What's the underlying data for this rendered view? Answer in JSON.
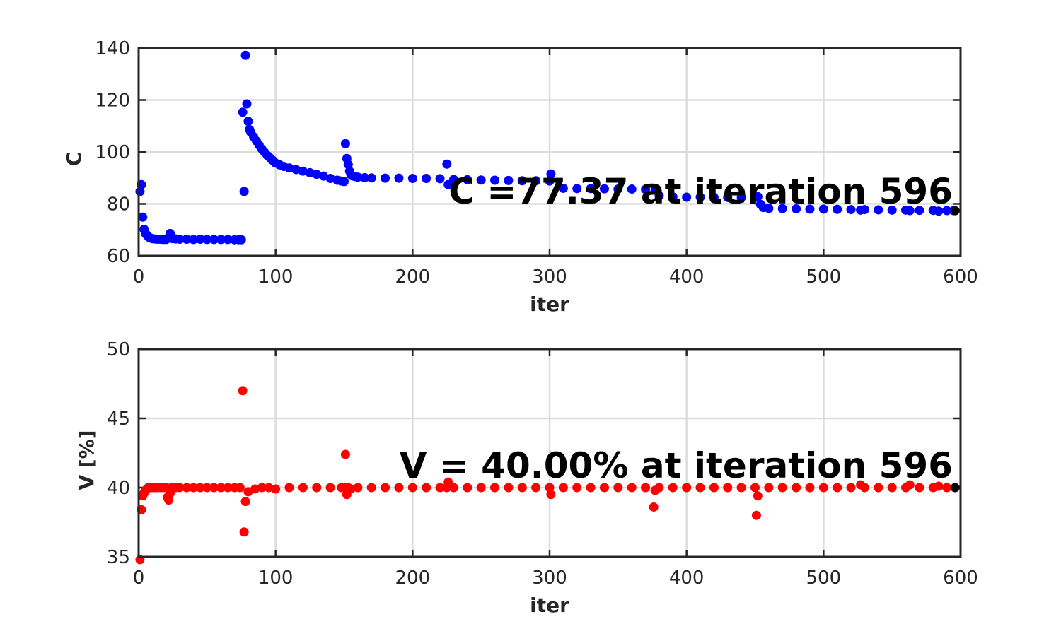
{
  "chart_data": [
    {
      "type": "scatter",
      "xlabel": "iter",
      "ylabel": "C",
      "xlim": [
        0,
        600
      ],
      "ylim": [
        60,
        140
      ],
      "xticks": [
        0,
        100,
        200,
        300,
        400,
        500,
        600
      ],
      "yticks": [
        60,
        80,
        100,
        120,
        140
      ],
      "grid": true,
      "annotation": "C =77.37 at iteration 596",
      "final_point": {
        "x": 596,
        "y": 77.37
      },
      "colors": {
        "series": "#0000ff",
        "final": "#000000"
      },
      "series": [
        {
          "x": [
            1,
            2,
            3,
            4,
            5,
            6,
            7,
            8,
            9,
            10,
            12,
            14,
            16,
            18,
            20,
            22,
            23,
            24,
            25,
            27,
            30,
            35,
            40,
            45,
            50,
            55,
            60,
            65,
            70,
            73,
            75,
            76,
            77,
            78,
            79,
            80,
            81,
            82,
            84,
            86,
            88,
            90,
            92,
            94,
            96,
            98,
            100,
            103,
            106,
            110,
            115,
            120,
            125,
            130,
            135,
            140,
            145,
            148,
            150,
            151,
            152,
            153,
            154,
            155,
            156,
            158,
            160,
            165,
            170,
            180,
            190,
            200,
            210,
            220,
            225,
            226,
            230,
            240,
            250,
            260,
            270,
            280,
            290,
            300,
            301,
            310,
            320,
            330,
            340,
            350,
            360,
            370,
            377,
            380,
            390,
            400,
            410,
            420,
            430,
            440,
            450,
            452,
            454,
            456,
            460,
            470,
            480,
            490,
            500,
            510,
            520,
            527,
            530,
            540,
            550,
            560,
            563,
            570,
            580,
            584,
            590,
            595
          ],
          "y": [
            84.8,
            87.4,
            74.9,
            70.2,
            68.6,
            68.0,
            67.4,
            67.0,
            66.8,
            66.6,
            66.5,
            66.4,
            66.4,
            66.3,
            66.3,
            67.2,
            68.6,
            67.5,
            66.6,
            66.5,
            66.4,
            66.4,
            66.3,
            66.4,
            66.3,
            66.3,
            66.3,
            66.3,
            66.2,
            66.2,
            66.2,
            115.3,
            84.8,
            137.2,
            118.5,
            111.8,
            108.6,
            107.5,
            105.8,
            104.2,
            102.6,
            101.1,
            99.8,
            98.6,
            97.7,
            96.7,
            95.7,
            95.0,
            94.4,
            93.8,
            93.2,
            92.6,
            92.0,
            91.4,
            90.7,
            89.8,
            89.1,
            88.8,
            88.6,
            103.2,
            97.5,
            95.2,
            92.6,
            91.2,
            90.8,
            90.5,
            90.3,
            90.1,
            90.0,
            89.9,
            89.9,
            89.8,
            89.8,
            89.7,
            95.3,
            87.4,
            89.4,
            89.3,
            89.2,
            89.1,
            89.0,
            88.9,
            88.9,
            88.8,
            91.5,
            86.0,
            85.9,
            85.9,
            85.8,
            85.7,
            85.7,
            85.6,
            85.5,
            83.1,
            82.7,
            82.6,
            82.6,
            82.5,
            82.5,
            82.5,
            82.5,
            82.8,
            79.8,
            78.6,
            78.3,
            78.2,
            78.1,
            78.0,
            78.0,
            77.9,
            77.8,
            77.6,
            77.8,
            77.7,
            77.6,
            77.6,
            77.4,
            77.5,
            77.5,
            77.2,
            77.4,
            77.4
          ]
        }
      ]
    },
    {
      "type": "scatter",
      "xlabel": "iter",
      "ylabel": "V [%]",
      "xlim": [
        0,
        600
      ],
      "ylim": [
        35,
        50
      ],
      "xticks": [
        0,
        100,
        200,
        300,
        400,
        500,
        600
      ],
      "yticks": [
        35,
        40,
        45,
        50
      ],
      "grid": true,
      "annotation": "V = 40.00% at iteration 596",
      "final_point": {
        "x": 596,
        "y": 40.0
      },
      "colors": {
        "series": "#ff0000",
        "final": "#000000"
      },
      "series": [
        {
          "x": [
            1,
            2,
            3,
            4,
            5,
            6,
            7,
            8,
            10,
            12,
            14,
            16,
            18,
            20,
            21,
            22,
            23,
            24,
            25,
            27,
            30,
            35,
            40,
            45,
            50,
            55,
            60,
            65,
            70,
            74,
            76,
            77,
            78,
            80,
            85,
            90,
            95,
            100,
            110,
            120,
            130,
            140,
            148,
            150,
            151,
            152,
            153,
            155,
            160,
            170,
            180,
            190,
            200,
            210,
            220,
            225,
            226,
            230,
            240,
            250,
            260,
            270,
            280,
            290,
            300,
            301,
            310,
            320,
            330,
            340,
            350,
            360,
            370,
            376,
            377,
            380,
            390,
            400,
            410,
            420,
            430,
            440,
            450,
            451,
            452,
            460,
            470,
            480,
            490,
            500,
            510,
            520,
            527,
            530,
            540,
            550,
            560,
            563,
            570,
            580,
            584,
            590
          ],
          "y": [
            34.8,
            38.4,
            39.4,
            39.6,
            39.8,
            39.9,
            40.0,
            40.0,
            40.0,
            40.0,
            40.0,
            40.0,
            40.0,
            40.0,
            39.3,
            39.1,
            39.6,
            40.0,
            40.0,
            40.0,
            40.0,
            40.0,
            40.0,
            40.0,
            40.0,
            40.0,
            40.0,
            40.0,
            40.0,
            40.0,
            47.0,
            36.8,
            39.0,
            39.7,
            39.9,
            40.0,
            40.0,
            39.9,
            40.0,
            40.0,
            40.0,
            40.0,
            40.0,
            40.0,
            42.4,
            39.5,
            40.0,
            39.9,
            40.0,
            40.0,
            40.0,
            40.0,
            40.0,
            40.0,
            40.0,
            40.0,
            40.4,
            40.0,
            40.0,
            40.0,
            40.0,
            40.0,
            40.0,
            40.0,
            40.0,
            39.5,
            40.0,
            40.0,
            40.0,
            40.0,
            40.0,
            40.0,
            40.0,
            38.6,
            39.8,
            40.0,
            40.0,
            40.0,
            40.0,
            40.0,
            40.0,
            40.0,
            40.0,
            38.0,
            39.4,
            40.0,
            40.0,
            40.0,
            40.0,
            40.0,
            40.0,
            40.0,
            40.2,
            40.0,
            40.0,
            40.0,
            40.0,
            40.2,
            40.0,
            40.0,
            40.1,
            40.0
          ]
        }
      ]
    }
  ]
}
